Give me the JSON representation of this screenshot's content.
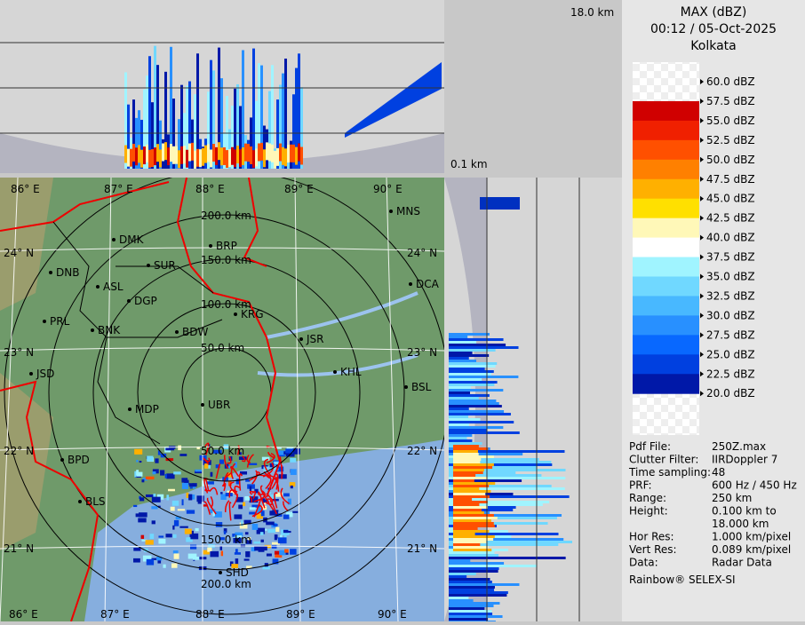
{
  "legend": {
    "title": "MAX (dBZ)",
    "time": "00:12 / 05-Oct-2025",
    "station": "Kolkata",
    "levels": [
      "60.0 dBZ",
      "57.5 dBZ",
      "55.0 dBZ",
      "52.5 dBZ",
      "50.0 dBZ",
      "47.5 dBZ",
      "45.0 dBZ",
      "42.5 dBZ",
      "40.0 dBZ",
      "37.5 dBZ",
      "35.0 dBZ",
      "32.5 dBZ",
      "30.0 dBZ",
      "27.5 dBZ",
      "25.0 dBZ",
      "22.5 dBZ",
      "20.0 dBZ"
    ]
  },
  "height_labels": {
    "top": "18.0 km",
    "bottom": "0.1 km"
  },
  "info": [
    {
      "label": "Pdf File:",
      "value": "250Z.max"
    },
    {
      "label": "Clutter Filter:",
      "value": "IIRDoppler 7"
    },
    {
      "label": "Time sampling:",
      "value": "48"
    },
    {
      "label": "PRF:",
      "value": "600 Hz / 450 Hz"
    },
    {
      "label": "Range:",
      "value": "250 km"
    },
    {
      "label": "Height:",
      "value": [
        "0.100 km to",
        "18.000 km"
      ]
    },
    {
      "label": "Hor Res:",
      "value": "1.000 km/pixel"
    },
    {
      "label": "Vert Res:",
      "value": "0.089 km/pixel"
    },
    {
      "label": "Data:",
      "value": "Radar Data"
    }
  ],
  "footer": "Rainbow® SELEX-SI",
  "map": {
    "lon_labels": [
      "86° E",
      "87° E",
      "88° E",
      "89° E",
      "90° E"
    ],
    "lat_labels": [
      "24° N",
      "23° N",
      "22° N",
      "21° N"
    ],
    "ring_labels_north": [
      "50.0 km",
      "100.0 km",
      "150.0 km",
      "200.0 km"
    ],
    "ring_labels_south": [
      "50.0 km",
      "150.0 km",
      "200.0 km"
    ],
    "cities": [
      "MNS",
      "DMK",
      "BRP",
      "DNB",
      "SUR",
      "ASL",
      "DGP",
      "DCA",
      "PRL",
      "BNK",
      "KRG",
      "BDW",
      "JSR",
      "JSD",
      "KHL",
      "BSL",
      "MDP",
      "UBR",
      "BPD",
      "BLS",
      "SHD"
    ]
  }
}
